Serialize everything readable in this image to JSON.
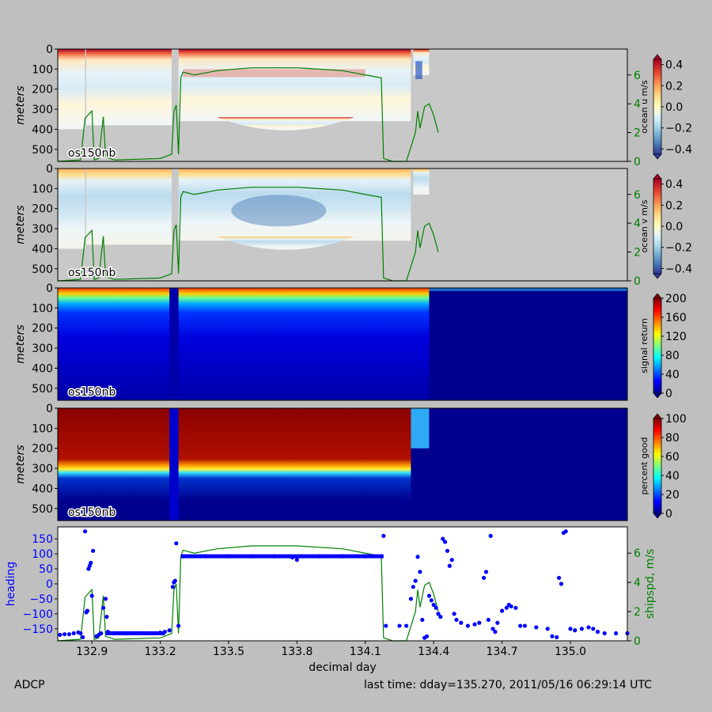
{
  "figure": {
    "footer_left": "ADCP",
    "footer_right": "last time: dday=135.270,  2011/05/16 06:29:14 UTC"
  },
  "chart_data": [
    {
      "type": "heatmap",
      "instrument_label": "os150nb",
      "ylabel": "meters",
      "y_ticks": [
        0,
        100,
        200,
        300,
        400,
        500
      ],
      "y_tick_labels": [
        "0",
        "100",
        "200",
        "300",
        "400",
        "500"
      ],
      "ylim": [
        560,
        0
      ],
      "xlim": [
        132.75,
        135.25
      ],
      "colorbar_label": "ocean u m/s",
      "colorbar_range": [
        -0.45,
        0.45
      ],
      "colorbar_ticks": [
        0.4,
        0.2,
        0.0,
        -0.2,
        -0.4
      ],
      "colorbar_tick_labels": [
        "0.4",
        "0.2",
        "0.0",
        "−0.2",
        "−0.4"
      ],
      "colormap": "RdYlBu_r",
      "right_axis_ticks": [
        0,
        2,
        4,
        6
      ],
      "right_axis_color": "#008000",
      "overlay_series": "ship speed m/s"
    },
    {
      "type": "heatmap",
      "instrument_label": "os150nb",
      "ylabel": "meters",
      "y_ticks": [
        0,
        100,
        200,
        300,
        400,
        500
      ],
      "y_tick_labels": [
        "0",
        "100",
        "200",
        "300",
        "400",
        "500"
      ],
      "ylim": [
        560,
        0
      ],
      "xlim": [
        132.75,
        135.25
      ],
      "colorbar_label": "ocean v m/s",
      "colorbar_range": [
        -0.45,
        0.45
      ],
      "colorbar_ticks": [
        0.4,
        0.2,
        0.0,
        -0.2,
        -0.4
      ],
      "colorbar_tick_labels": [
        "0.4",
        "0.2",
        "0.0",
        "−0.2",
        "−0.4"
      ],
      "colormap": "RdYlBu_r",
      "right_axis_ticks": [
        0,
        2,
        4,
        6
      ],
      "right_axis_color": "#008000",
      "overlay_series": "ship speed m/s"
    },
    {
      "type": "heatmap",
      "instrument_label": "os150nb",
      "ylabel": "meters",
      "y_ticks": [
        0,
        100,
        200,
        300,
        400,
        500
      ],
      "y_tick_labels": [
        "0",
        "100",
        "200",
        "300",
        "400",
        "500"
      ],
      "ylim": [
        560,
        0
      ],
      "xlim": [
        132.75,
        135.25
      ],
      "colorbar_label": "signal return",
      "colorbar_range": [
        0,
        200
      ],
      "colorbar_ticks": [
        200,
        160,
        120,
        80,
        40,
        0
      ],
      "colorbar_tick_labels": [
        "200",
        "160",
        "120",
        "80",
        "40",
        "0"
      ],
      "colormap": "jet"
    },
    {
      "type": "heatmap",
      "instrument_label": "os150nb",
      "ylabel": "meters",
      "y_ticks": [
        0,
        100,
        200,
        300,
        400,
        500
      ],
      "y_tick_labels": [
        "0",
        "100",
        "200",
        "300",
        "400",
        "500"
      ],
      "ylim": [
        560,
        0
      ],
      "xlim": [
        132.75,
        135.25
      ],
      "colorbar_label": "percent good",
      "colorbar_range": [
        0,
        100
      ],
      "colorbar_ticks": [
        100,
        80,
        60,
        40,
        20,
        0
      ],
      "colorbar_tick_labels": [
        "100",
        "80",
        "60",
        "40",
        "20",
        "0"
      ],
      "colormap": "jet"
    },
    {
      "type": "scatter",
      "xlabel": "decimal day",
      "xlim": [
        132.75,
        135.25
      ],
      "x_ticks": [
        132.9,
        133.2,
        133.5,
        133.8,
        134.1,
        134.4,
        134.7,
        135.0
      ],
      "x_tick_labels": [
        "132.9",
        "133.2",
        "133.5",
        "133.8",
        "134.1",
        "134.4",
        "134.7",
        "135.0"
      ],
      "ylabel": "heading",
      "ylabel_color": "#0000ff",
      "ylim": [
        -190,
        190
      ],
      "y_ticks": [
        150,
        100,
        50,
        0,
        -50,
        -100,
        -150
      ],
      "y_tick_labels": [
        "150",
        "100",
        "50",
        "0",
        "−50",
        "−100",
        "−150"
      ],
      "y2label": "shipspd, m/s",
      "y2label_color": "#008000",
      "y2lim": [
        0,
        7.8
      ],
      "y2_ticks": [
        0,
        2,
        4,
        6
      ],
      "y2_tick_labels": [
        "0",
        "2",
        "4",
        "6"
      ],
      "series": [
        {
          "name": "heading",
          "color": "#0000ff",
          "points": [
            [
              132.76,
              -170
            ],
            [
              132.78,
              -168
            ],
            [
              132.8,
              -168
            ],
            [
              132.82,
              -165
            ],
            [
              132.84,
              -162
            ],
            [
              132.85,
              -165
            ],
            [
              132.86,
              -178
            ],
            [
              132.87,
              175
            ],
            [
              132.875,
              -95
            ],
            [
              132.88,
              -90
            ],
            [
              132.885,
              50
            ],
            [
              132.89,
              60
            ],
            [
              132.895,
              70
            ],
            [
              132.9,
              -40
            ],
            [
              132.905,
              110
            ],
            [
              132.92,
              -175
            ],
            [
              132.93,
              -170
            ],
            [
              132.94,
              -165
            ],
            [
              132.95,
              -80
            ],
            [
              132.96,
              -50
            ],
            [
              132.965,
              -110
            ],
            [
              132.97,
              -160
            ],
            [
              133.0,
              -165
            ],
            [
              133.05,
              -165
            ],
            [
              133.1,
              -165
            ],
            [
              133.15,
              -165
            ],
            [
              133.2,
              -163
            ],
            [
              133.22,
              -160
            ],
            [
              133.24,
              -155
            ],
            [
              133.255,
              -10
            ],
            [
              133.26,
              5
            ],
            [
              133.265,
              10
            ],
            [
              133.27,
              135
            ],
            [
              133.28,
              -140
            ],
            [
              133.3,
              92
            ],
            [
              133.4,
              92
            ],
            [
              133.5,
              92
            ],
            [
              133.6,
              92
            ],
            [
              133.7,
              92
            ],
            [
              133.78,
              88
            ],
            [
              133.8,
              80
            ],
            [
              133.82,
              92
            ],
            [
              133.9,
              92
            ],
            [
              134.0,
              92
            ],
            [
              134.1,
              92
            ],
            [
              134.17,
              92
            ],
            [
              134.18,
              160
            ],
            [
              134.19,
              -140
            ],
            [
              134.25,
              -140
            ],
            [
              134.28,
              -140
            ],
            [
              134.3,
              -50
            ],
            [
              134.31,
              -10
            ],
            [
              134.32,
              10
            ],
            [
              134.33,
              90
            ],
            [
              134.34,
              40
            ],
            [
              134.35,
              -120
            ],
            [
              134.36,
              -180
            ],
            [
              134.37,
              -175
            ],
            [
              134.38,
              -40
            ],
            [
              134.39,
              -55
            ],
            [
              134.4,
              -70
            ],
            [
              134.41,
              -80
            ],
            [
              134.42,
              -100
            ],
            [
              134.43,
              -110
            ],
            [
              134.44,
              150
            ],
            [
              134.45,
              140
            ],
            [
              134.46,
              110
            ],
            [
              134.47,
              60
            ],
            [
              134.48,
              80
            ],
            [
              134.49,
              -100
            ],
            [
              134.5,
              -120
            ],
            [
              134.52,
              -130
            ],
            [
              134.55,
              -140
            ],
            [
              134.58,
              -135
            ],
            [
              134.6,
              -130
            ],
            [
              134.62,
              20
            ],
            [
              134.63,
              40
            ],
            [
              134.64,
              -120
            ],
            [
              134.65,
              160
            ],
            [
              134.66,
              -150
            ],
            [
              134.67,
              -160
            ],
            [
              134.68,
              -130
            ],
            [
              134.7,
              -90
            ],
            [
              134.72,
              -80
            ],
            [
              134.73,
              -70
            ],
            [
              134.74,
              -75
            ],
            [
              134.76,
              -80
            ],
            [
              134.78,
              -140
            ],
            [
              134.8,
              -140
            ],
            [
              134.85,
              -145
            ],
            [
              134.9,
              -150
            ],
            [
              134.92,
              -175
            ],
            [
              134.94,
              -178
            ],
            [
              134.95,
              20
            ],
            [
              134.96,
              0
            ],
            [
              134.97,
              170
            ],
            [
              134.98,
              175
            ],
            [
              135.0,
              -150
            ],
            [
              135.02,
              -155
            ],
            [
              135.05,
              -150
            ],
            [
              135.08,
              -145
            ],
            [
              135.1,
              -150
            ],
            [
              135.12,
              -160
            ],
            [
              135.15,
              -165
            ],
            [
              135.2,
              -165
            ],
            [
              135.25,
              -165
            ]
          ]
        },
        {
          "name": "shipspd, m/s",
          "color": "#008000",
          "points": [
            [
              132.75,
              0.0
            ],
            [
              132.85,
              0.1
            ],
            [
              132.87,
              3.0
            ],
            [
              132.9,
              3.5
            ],
            [
              132.91,
              0.1
            ],
            [
              132.93,
              0.2
            ],
            [
              132.95,
              3.1
            ],
            [
              132.96,
              0.3
            ],
            [
              133.0,
              0.1
            ],
            [
              133.2,
              0.2
            ],
            [
              133.25,
              0.5
            ],
            [
              133.26,
              3.5
            ],
            [
              133.27,
              3.9
            ],
            [
              133.28,
              0.5
            ],
            [
              133.29,
              5.8
            ],
            [
              133.3,
              6.2
            ],
            [
              133.35,
              6.0
            ],
            [
              133.45,
              6.3
            ],
            [
              133.6,
              6.5
            ],
            [
              133.8,
              6.5
            ],
            [
              134.0,
              6.3
            ],
            [
              134.1,
              6.0
            ],
            [
              134.17,
              5.8
            ],
            [
              134.18,
              0.2
            ],
            [
              134.22,
              0.0
            ],
            [
              134.28,
              0.0
            ],
            [
              134.3,
              1.0
            ],
            [
              134.32,
              2.0
            ],
            [
              134.33,
              3.5
            ],
            [
              134.34,
              2.3
            ],
            [
              134.36,
              3.8
            ],
            [
              134.38,
              4.0
            ],
            [
              134.4,
              3.2
            ],
            [
              134.42,
              2.0
            ]
          ]
        }
      ]
    }
  ]
}
